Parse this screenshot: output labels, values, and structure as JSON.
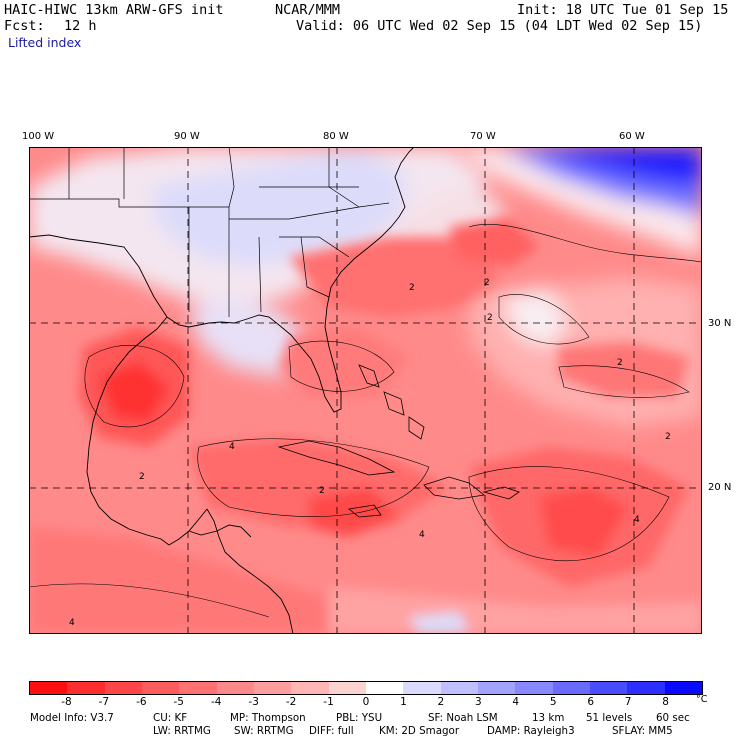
{
  "header": {
    "model_title": "HAIC-HIWC 13km ARW-GFS init",
    "org": "NCAR/MMM",
    "init": "Init: 18 UTC Tue 01 Sep 15",
    "fcst_label": "Fcst:",
    "fcst_value": "12 h",
    "valid": "Valid: 06 UTC Wed 02 Sep 15 (04 LDT Wed 02 Sep 15)",
    "field": "Lifted index"
  },
  "map": {
    "lon_labels": [
      "100 W",
      "90 W",
      "80 W",
      "70 W",
      "60 W"
    ],
    "lat_labels": [
      "30 N",
      "20 N"
    ],
    "contour_labels": [
      "2",
      "2",
      "2",
      "2",
      "2",
      "2",
      "2",
      "4",
      "4",
      "4",
      "4"
    ]
  },
  "colorbar": {
    "ticks": [
      "-8",
      "-7",
      "-6",
      "-5",
      "-4",
      "-3",
      "-2",
      "-1",
      "0",
      "1",
      "2",
      "3",
      "4",
      "5",
      "6",
      "7",
      "8"
    ],
    "unit": "°C",
    "colors": [
      "#ff1010",
      "#ff2e2e",
      "#ff4646",
      "#ff5c5c",
      "#ff7272",
      "#ff8888",
      "#ff9e9e",
      "#ffb6b6",
      "#ffd2d2",
      "#ffffff",
      "#dadaff",
      "#c0c0ff",
      "#a4a4ff",
      "#8888ff",
      "#6a6aff",
      "#4c4cff",
      "#2e2eff",
      "#0a0aff"
    ]
  },
  "model_info": {
    "line1": [
      "Model Info: V3.7",
      "CU: KF",
      "MP: Thompson",
      "PBL: YSU",
      "SF: Noah LSM",
      "13 km",
      "51 levels",
      "60 sec"
    ],
    "line2": [
      "LW: RRTMG",
      "SW: RRTMG",
      "DIFF: full",
      "KM: 2D Smagor",
      "DAMP: Rayleigh3",
      "SFLAY: MM5"
    ]
  }
}
